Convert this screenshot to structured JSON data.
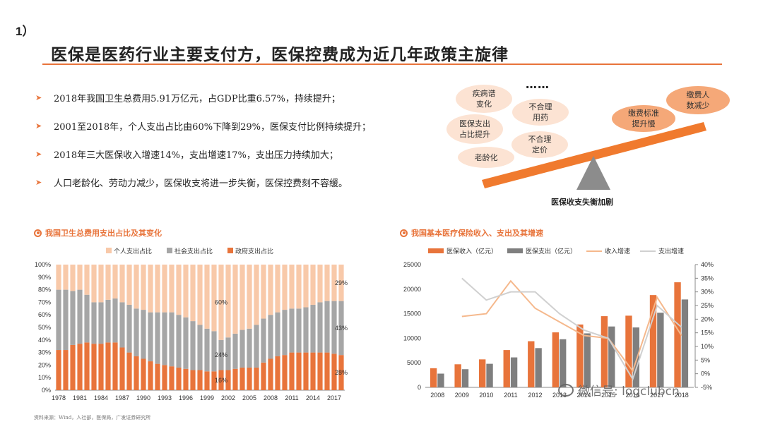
{
  "header": {
    "section": "1）",
    "title": "医保是医药行业主要支付方，医保控费成为近几年政策主旋律"
  },
  "bullets": [
    "2018年我国卫生总费用5.91万亿元，占GDP比重6.57%，持续提升；",
    "2001至2018年，个人支出占比由60%下降到29%，医保支付比例持续提升；",
    "2018年三大医保收入增速14%，支出增速17%，支出压力持续加大；",
    "人口老龄化、劳动力减少，医保收支将进一步失衡，医保控费刻不容缓。"
  ],
  "balance": {
    "ellipsis": "……",
    "left_bubbles": [
      "疾病谱\n变化",
      "不合理\n用药",
      "医保支出\n占比提升",
      "不合理\n定价",
      "老龄化"
    ],
    "right_bubbles": [
      "缴费人\n数减少",
      "缴费标准\n提升慢"
    ],
    "caption": "医保收支失衡加剧",
    "colors": {
      "bubble_light": "#fce3d3",
      "bubble_dark": "#f5a878",
      "beam": "#f07a2e",
      "fulcrum": "#8c8c8c"
    }
  },
  "source": "资料来源：Wind，人社部，医保局，广发证券研究所",
  "watermark": "微信号: logclubcn",
  "chart_data": [
    {
      "type": "bar",
      "stacked": true,
      "title": "我国卫生总费用支出占比及其变化",
      "categories": [
        "1978",
        "1979",
        "1980",
        "1981",
        "1982",
        "1983",
        "1984",
        "1985",
        "1986",
        "1987",
        "1988",
        "1989",
        "1990",
        "1991",
        "1992",
        "1993",
        "1994",
        "1995",
        "1996",
        "1997",
        "1998",
        "1999",
        "2000",
        "2001",
        "2002",
        "2003",
        "2004",
        "2005",
        "2006",
        "2007",
        "2008",
        "2009",
        "2010",
        "2011",
        "2012",
        "2013",
        "2014",
        "2015",
        "2016",
        "2017",
        "2018"
      ],
      "x_tick_labels": [
        "1978",
        "1981",
        "1984",
        "1987",
        "1990",
        "1993",
        "1996",
        "1999",
        "2002",
        "2005",
        "2008",
        "2011",
        "2014",
        "2017"
      ],
      "series": [
        {
          "name": "政府支出占比",
          "color": "#e8743b",
          "values": [
            32,
            32,
            36,
            37,
            38,
            37,
            37,
            38,
            38,
            34,
            30,
            27,
            25,
            23,
            21,
            20,
            19,
            18,
            17,
            16,
            16,
            15,
            15,
            16,
            16,
            17,
            18,
            18,
            18,
            22,
            25,
            27,
            28,
            30,
            30,
            30,
            30,
            30,
            30,
            29,
            28
          ]
        },
        {
          "name": "社会支出占比",
          "color": "#a6a6a6",
          "values": [
            48,
            48,
            43,
            43,
            38,
            33,
            33,
            34,
            35,
            36,
            38,
            38,
            39,
            39,
            41,
            42,
            43,
            42,
            41,
            39,
            36,
            34,
            32,
            24,
            26,
            28,
            30,
            31,
            34,
            35,
            35,
            35,
            36,
            35,
            35,
            36,
            38,
            40,
            41,
            42,
            43
          ]
        },
        {
          "name": "个人支出占比",
          "color": "#f8c9a9",
          "values": [
            20,
            20,
            21,
            20,
            24,
            30,
            30,
            28,
            27,
            30,
            32,
            35,
            36,
            38,
            38,
            38,
            38,
            40,
            42,
            45,
            48,
            51,
            53,
            60,
            58,
            55,
            52,
            51,
            48,
            43,
            40,
            38,
            36,
            35,
            35,
            34,
            32,
            30,
            29,
            29,
            29
          ]
        }
      ],
      "ylim": [
        0,
        100
      ],
      "y_ticks": [
        "0%",
        "10%",
        "20%",
        "30%",
        "40%",
        "50%",
        "60%",
        "70%",
        "80%",
        "90%",
        "100%"
      ],
      "annotations": [
        {
          "text": "60%",
          "x": "2001"
        },
        {
          "text": "24%",
          "x": "2001"
        },
        {
          "text": "16%",
          "x": "2001"
        },
        {
          "text": "29%",
          "x": "2018"
        },
        {
          "text": "43%",
          "x": "2018"
        },
        {
          "text": "28%",
          "x": "2018"
        }
      ],
      "legend_position": "top"
    },
    {
      "type": "bar",
      "title": "我国基本医疗保险收入、支出及其增速",
      "categories": [
        "2008",
        "2009",
        "2010",
        "2011",
        "2012",
        "2013",
        "2014",
        "2015",
        "2016",
        "2017",
        "2018"
      ],
      "x_tick_labels": [
        "2008",
        "2009",
        "2010",
        "2011",
        "2012",
        "2013",
        "2014",
        "2015",
        "2016",
        "2017",
        "2018"
      ],
      "series": [
        {
          "name": "医保收入（亿元）",
          "kind": "bar",
          "axis": "left",
          "color": "#e8743b",
          "values": [
            3900,
            4700,
            5700,
            7600,
            9400,
            11200,
            12800,
            14500,
            14600,
            18800,
            21400
          ]
        },
        {
          "name": "医保支出（亿元）",
          "kind": "bar",
          "axis": "left",
          "color": "#7f7f7f",
          "values": [
            2800,
            3700,
            4800,
            6100,
            8000,
            9800,
            11000,
            12400,
            12200,
            15200,
            17900
          ]
        },
        {
          "name": "收入增速",
          "kind": "line",
          "axis": "right",
          "color": "#f5b88c",
          "values": [
            null,
            21,
            22,
            34,
            24,
            19,
            14,
            13,
            1,
            28,
            14
          ]
        },
        {
          "name": "支出增速",
          "kind": "line",
          "axis": "right",
          "color": "#d0d0d0",
          "values": [
            null,
            35,
            27,
            30,
            30,
            22,
            16,
            13,
            -2,
            25,
            17
          ]
        }
      ],
      "ylim": [
        0,
        25000
      ],
      "y_ticks": [
        "0",
        "5000",
        "10000",
        "15000",
        "20000",
        "25000"
      ],
      "y2lim": [
        -5,
        40
      ],
      "y2_ticks": [
        "-5%",
        "0%",
        "5%",
        "10%",
        "15%",
        "20%",
        "25%",
        "30%",
        "35%",
        "40%"
      ],
      "legend_position": "top"
    }
  ]
}
